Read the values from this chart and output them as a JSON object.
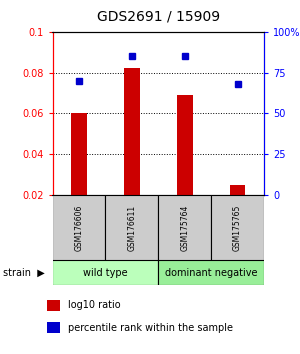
{
  "title": "GDS2691 / 15909",
  "samples": [
    "GSM176606",
    "GSM176611",
    "GSM175764",
    "GSM175765"
  ],
  "log10_ratio": [
    0.06,
    0.082,
    0.069,
    0.025
  ],
  "percentile_rank": [
    70,
    85,
    85,
    68
  ],
  "groups": [
    {
      "label": "wild type",
      "samples": [
        0,
        1
      ],
      "color": "#bbffbb"
    },
    {
      "label": "dominant negative",
      "samples": [
        2,
        3
      ],
      "color": "#99ee99"
    }
  ],
  "bar_color": "#cc0000",
  "marker_color": "#0000cc",
  "left_ylim": [
    0.02,
    0.1
  ],
  "right_ylim": [
    0,
    100
  ],
  "left_yticks": [
    0.02,
    0.04,
    0.06,
    0.08,
    0.1
  ],
  "right_yticks": [
    0,
    25,
    50,
    75,
    100
  ],
  "right_yticklabels": [
    "0",
    "25",
    "50",
    "75",
    "100%"
  ],
  "dotted_lines": [
    0.04,
    0.06,
    0.08
  ],
  "background_color": "#ffffff",
  "sample_box_color": "#cccccc",
  "legend_items": [
    {
      "color": "#cc0000",
      "label": "log10 ratio",
      "marker": "s"
    },
    {
      "color": "#0000cc",
      "label": "percentile rank within the sample",
      "marker": "s"
    }
  ]
}
